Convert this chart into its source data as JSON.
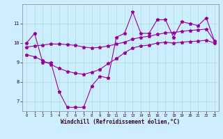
{
  "xlabel": "Windchill (Refroidissement éolien,°C)",
  "bg_color": "#cceeff",
  "line_color": "#990099",
  "grid_color": "#aadddd",
  "xlim": [
    -0.5,
    23.5
  ],
  "ylim": [
    6.5,
    12.0
  ],
  "yticks": [
    7,
    8,
    9,
    10,
    11
  ],
  "xticks": [
    0,
    1,
    2,
    3,
    4,
    5,
    6,
    7,
    8,
    9,
    10,
    11,
    12,
    13,
    14,
    15,
    16,
    17,
    18,
    19,
    20,
    21,
    22,
    23
  ],
  "series1_y": [
    10.0,
    10.5,
    9.0,
    9.0,
    7.5,
    6.7,
    6.7,
    6.7,
    7.8,
    8.3,
    8.2,
    10.3,
    10.5,
    11.6,
    10.5,
    10.5,
    11.2,
    11.2,
    10.3,
    11.1,
    11.0,
    10.9,
    11.3,
    10.1
  ],
  "series2_y": [
    9.8,
    9.85,
    9.9,
    9.95,
    9.95,
    9.92,
    9.88,
    9.8,
    9.75,
    9.78,
    9.85,
    9.95,
    10.05,
    10.2,
    10.3,
    10.35,
    10.45,
    10.52,
    10.55,
    10.6,
    10.65,
    10.68,
    10.72,
    10.1
  ],
  "series3_y": [
    9.4,
    9.3,
    9.1,
    8.9,
    8.7,
    8.55,
    8.45,
    8.4,
    8.5,
    8.65,
    8.95,
    9.2,
    9.5,
    9.75,
    9.85,
    9.9,
    10.0,
    10.05,
    10.0,
    10.05,
    10.08,
    10.1,
    10.15,
    10.0
  ]
}
